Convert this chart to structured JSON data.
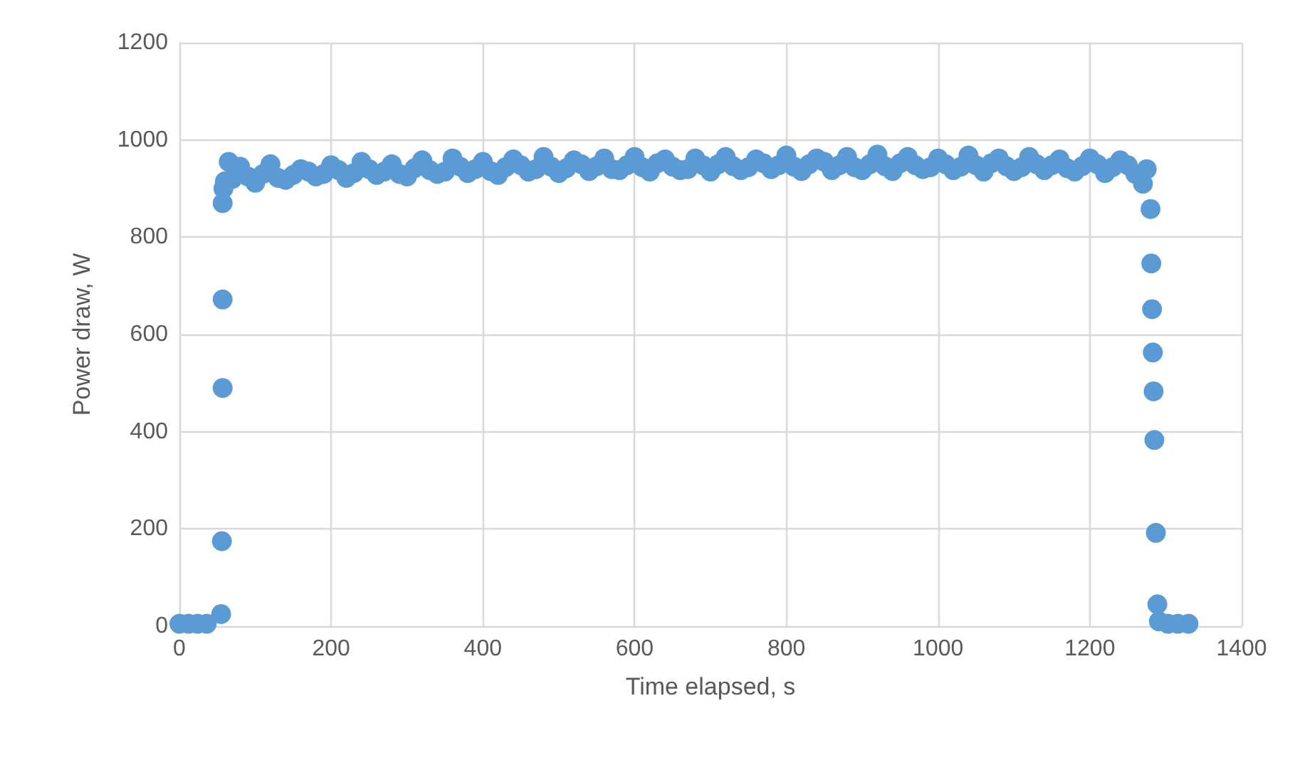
{
  "chart_data": {
    "type": "scatter",
    "xlabel": "Time elapsed, s",
    "ylabel": "Power draw, W",
    "xlim": [
      0,
      1400
    ],
    "xticks": [
      0,
      200,
      400,
      600,
      800,
      1000,
      1200,
      1400
    ],
    "ylim": [
      0,
      1200
    ],
    "yticks": [
      0,
      200,
      400,
      600,
      800,
      1000,
      1200
    ],
    "grid": true,
    "marker": "circle",
    "series": [
      {
        "color": "#5b9bd5",
        "x": [
          0,
          12,
          24,
          36,
          55,
          56,
          57,
          57,
          57,
          58,
          60,
          65,
          70,
          90,
          110,
          130,
          150,
          170,
          190,
          210,
          230,
          250,
          270,
          290,
          310,
          330,
          350,
          370,
          390,
          410,
          430,
          450,
          470,
          490,
          510,
          530,
          550,
          570,
          590,
          610,
          630,
          650,
          670,
          690,
          710,
          730,
          750,
          770,
          790,
          810,
          830,
          850,
          870,
          890,
          910,
          930,
          950,
          970,
          990,
          1010,
          1030,
          1050,
          1070,
          1090,
          1110,
          1130,
          1150,
          1170,
          1190,
          1210,
          1230,
          1250,
          80,
          100,
          120,
          140,
          160,
          180,
          200,
          220,
          240,
          260,
          280,
          300,
          320,
          340,
          360,
          380,
          400,
          420,
          440,
          460,
          480,
          500,
          520,
          540,
          560,
          580,
          600,
          620,
          640,
          660,
          680,
          700,
          720,
          740,
          760,
          780,
          800,
          820,
          840,
          860,
          880,
          900,
          920,
          940,
          960,
          980,
          1000,
          1020,
          1040,
          1060,
          1080,
          1100,
          1120,
          1140,
          1160,
          1180,
          1200,
          1220,
          1240,
          1260,
          1270,
          1275,
          1280,
          1281,
          1282,
          1283,
          1284,
          1285,
          1287,
          1289,
          1291,
          1303,
          1316,
          1330
        ],
        "values": [
          5,
          5,
          5,
          5,
          25,
          175,
          490,
          672,
          870,
          900,
          915,
          955,
          920,
          925,
          930,
          922,
          928,
          935,
          930,
          938,
          932,
          940,
          935,
          930,
          942,
          938,
          935,
          945,
          940,
          936,
          944,
          948,
          940,
          945,
          942,
          950,
          946,
          940,
          948,
          944,
          952,
          945,
          940,
          948,
          950,
          946,
          944,
          952,
          948,
          945,
          950,
          955,
          948,
          944,
          950,
          946,
          952,
          948,
          944,
          950,
          945,
          948,
          952,
          946,
          944,
          950,
          948,
          942,
          946,
          950,
          944,
          948,
          945,
          912,
          950,
          918,
          940,
          925,
          948,
          922,
          955,
          928,
          950,
          925,
          958,
          930,
          962,
          932,
          955,
          928,
          960,
          935,
          965,
          932,
          958,
          936,
          962,
          938,
          965,
          935,
          960,
          938,
          962,
          935,
          965,
          938,
          960,
          940,
          968,
          936,
          962,
          938,
          965,
          938,
          970,
          936,
          965,
          940,
          962,
          938,
          968,
          935,
          962,
          936,
          965,
          938,
          960,
          935,
          962,
          932,
          958,
          930,
          910,
          940,
          858,
          746,
          652,
          563,
          483,
          383,
          192,
          45,
          10,
          5,
          5,
          5
        ]
      }
    ]
  }
}
